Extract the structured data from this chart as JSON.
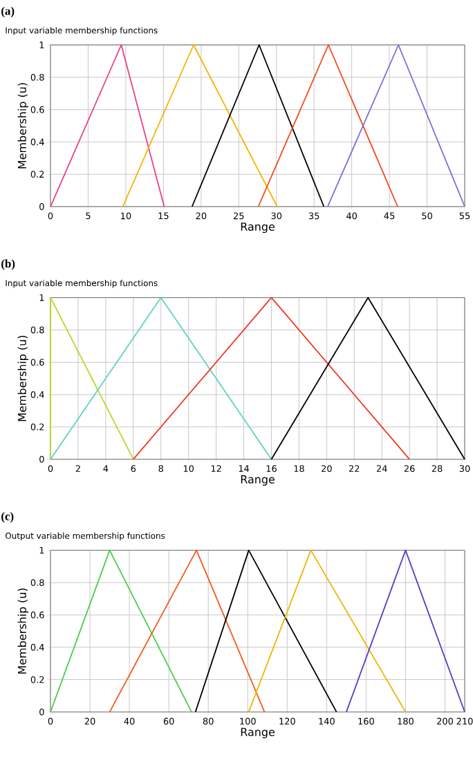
{
  "chart_data": [
    {
      "type": "line",
      "title": "(a)",
      "subtitle": "Input variable membership functions",
      "xlabel": "Range",
      "ylabel": "Membership (u)",
      "xlim": [
        0,
        55
      ],
      "xticks": [
        0,
        5,
        10,
        15,
        20,
        25,
        30,
        35,
        40,
        45,
        50,
        55
      ],
      "ylim": [
        0,
        1
      ],
      "yticks": [
        0,
        0.2,
        0.4,
        0.6,
        0.8,
        1
      ],
      "grid": true,
      "series": [
        {
          "color": "#e8408c",
          "x": [
            0,
            9.4,
            15.1
          ],
          "values": [
            0,
            1,
            0
          ]
        },
        {
          "color": "#f5b400",
          "x": [
            9.6,
            19,
            30.1
          ],
          "values": [
            0,
            1,
            0
          ]
        },
        {
          "color": "#000000",
          "x": [
            18.8,
            27.7,
            36.3
          ],
          "values": [
            0,
            1,
            0
          ]
        },
        {
          "color": "#f04a1e",
          "x": [
            27.6,
            36.9,
            46.1
          ],
          "values": [
            0,
            1,
            0
          ]
        },
        {
          "color": "#7b6fd6",
          "x": [
            36.8,
            46.2,
            55
          ],
          "values": [
            0,
            1,
            0
          ]
        }
      ]
    },
    {
      "type": "line",
      "title": "(b)",
      "subtitle": "Input variable membership functions",
      "xlabel": "Range",
      "ylabel": "Membership (u)",
      "xlim": [
        0,
        30
      ],
      "xticks": [
        0,
        2,
        4,
        6,
        8,
        10,
        12,
        14,
        16,
        18,
        20,
        22,
        24,
        26,
        28,
        30
      ],
      "ylim": [
        0,
        1
      ],
      "yticks": [
        0,
        0.2,
        0.4,
        0.6,
        0.8,
        1
      ],
      "grid": true,
      "series": [
        {
          "color": "#b8d82a",
          "x": [
            0,
            0,
            6
          ],
          "values": [
            0,
            1,
            0
          ]
        },
        {
          "color": "#5fd3c0",
          "x": [
            0,
            8,
            16
          ],
          "values": [
            0,
            1,
            0
          ]
        },
        {
          "color": "#ee3a24",
          "x": [
            6,
            16,
            26
          ],
          "values": [
            0,
            1,
            0
          ]
        },
        {
          "color": "#000000",
          "x": [
            16,
            23,
            30
          ],
          "values": [
            0,
            1,
            0
          ]
        }
      ]
    },
    {
      "type": "line",
      "title": "(c)",
      "subtitle": "Output variable membership functions",
      "xlabel": "Range",
      "ylabel": "Membership (u)",
      "xlim": [
        0,
        210
      ],
      "xticks": [
        0,
        20,
        40,
        60,
        80,
        100,
        120,
        140,
        160,
        180,
        200,
        210
      ],
      "ylim": [
        0,
        1
      ],
      "yticks": [
        0,
        0.2,
        0.4,
        0.6,
        0.8,
        1
      ],
      "grid": true,
      "series": [
        {
          "color": "#4ccc50",
          "x": [
            0,
            30,
            71.5
          ],
          "values": [
            0,
            1,
            0
          ]
        },
        {
          "color": "#f25a1a",
          "x": [
            30,
            74,
            108.5
          ],
          "values": [
            0,
            1,
            0
          ]
        },
        {
          "color": "#000000",
          "x": [
            73.5,
            100.5,
            145
          ],
          "values": [
            0,
            1,
            0
          ]
        },
        {
          "color": "#f0b400",
          "x": [
            100.5,
            132,
            180
          ],
          "values": [
            0,
            1,
            0
          ]
        },
        {
          "color": "#5a3cc8",
          "x": [
            150,
            180,
            210
          ],
          "values": [
            0,
            1,
            0
          ]
        }
      ]
    }
  ]
}
